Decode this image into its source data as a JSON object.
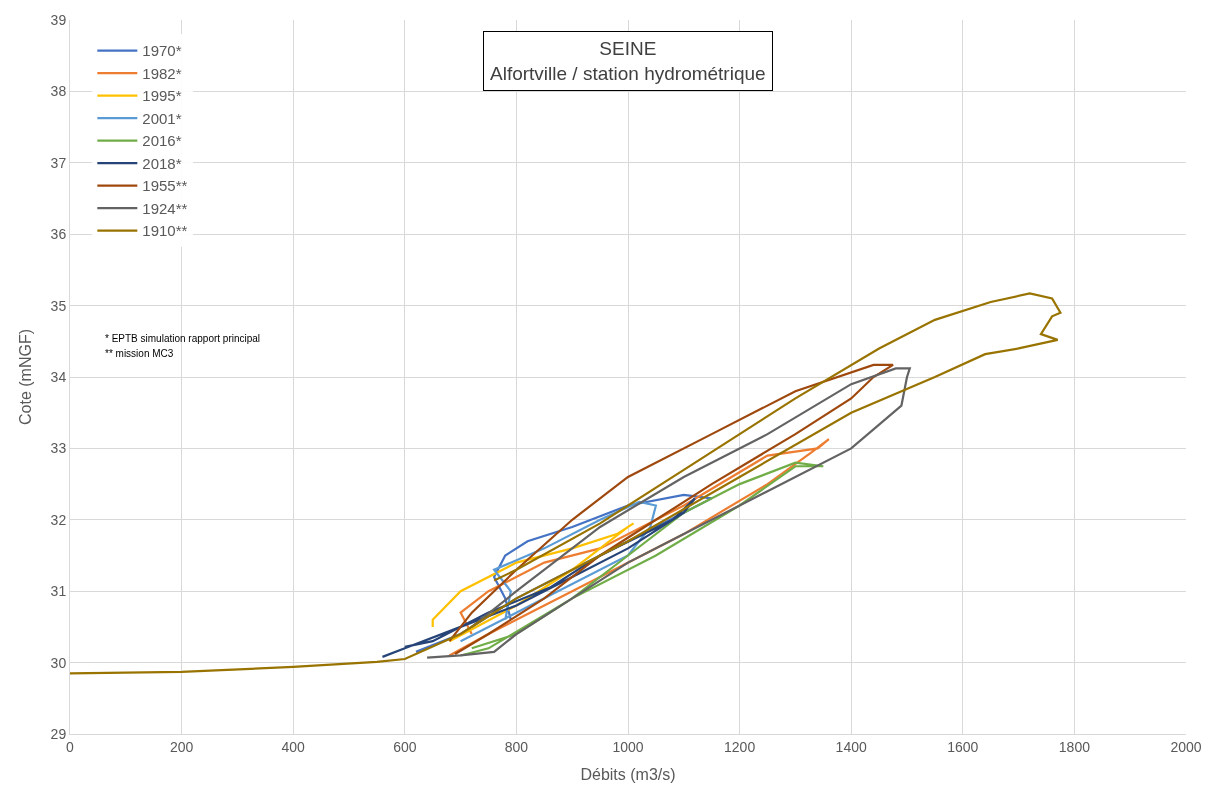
{
  "chart_data": {
    "type": "line",
    "title": "SEINE\nAlfortville / station hydrométrique",
    "xlabel": "Débits (m3/s)",
    "ylabel": "Cote (mNGF)",
    "xlim": [
      0,
      2000
    ],
    "xticks": [
      0,
      200,
      400,
      600,
      800,
      1000,
      1200,
      1400,
      1600,
      1800,
      2000
    ],
    "ylim": [
      29,
      39
    ],
    "yticks": [
      29,
      30,
      31,
      32,
      33,
      34,
      35,
      36,
      37,
      38,
      39
    ],
    "grid": true,
    "legend": "top left",
    "marker": "none",
    "line_style": "solid",
    "annotations": [
      "* EPTB simulation rapport principal",
      "** mission MC3"
    ],
    "series": [
      {
        "name": "1970*",
        "color": "#4472c4",
        "x": [
          620,
          700,
          800,
          900,
          1000,
          1100,
          1150,
          1100,
          1000,
          900,
          820,
          780,
          760,
          780,
          790
        ],
        "values": [
          30.15,
          30.4,
          30.9,
          31.3,
          31.7,
          32.1,
          32.3,
          32.35,
          32.2,
          31.9,
          31.7,
          31.5,
          31.2,
          30.9,
          30.6
        ]
      },
      {
        "name": "1982*",
        "color": "#ed7d31",
        "x": [
          680,
          750,
          900,
          1100,
          1250,
          1330,
          1360,
          1340,
          1250,
          1100,
          950,
          850,
          750,
          700,
          720
        ],
        "values": [
          30.1,
          30.4,
          31.0,
          31.8,
          32.5,
          32.95,
          33.13,
          33.0,
          32.9,
          32.2,
          31.6,
          31.4,
          31.0,
          30.7,
          30.4
        ]
      },
      {
        "name": "1995*",
        "color": "#ffc000",
        "x": [
          680,
          800,
          900,
          1000,
          1010,
          980,
          900,
          800,
          700,
          650,
          650
        ],
        "values": [
          30.3,
          30.8,
          31.3,
          31.9,
          31.95,
          31.8,
          31.6,
          31.4,
          31.0,
          30.6,
          30.5
        ]
      },
      {
        "name": "2001*",
        "color": "#5b9bd5",
        "x": [
          700,
          850,
          1000,
          1040,
          1050,
          1020,
          950,
          850,
          760,
          790,
          780
        ],
        "values": [
          30.3,
          30.9,
          31.5,
          31.9,
          32.2,
          32.25,
          32.0,
          31.6,
          31.3,
          31.0,
          30.6
        ]
      },
      {
        "name": "2016*",
        "color": "#70ad47",
        "x": [
          700,
          750,
          900,
          1050,
          1200,
          1300,
          1350,
          1300,
          1200,
          1100,
          1000,
          900,
          800,
          720
        ],
        "values": [
          30.1,
          30.2,
          30.9,
          31.5,
          32.2,
          32.75,
          32.75,
          32.8,
          32.5,
          32.1,
          31.5,
          30.9,
          30.4,
          30.2
        ]
      },
      {
        "name": "2018*",
        "color": "#264478",
        "x": [
          560,
          600,
          700,
          800,
          900,
          1000,
          1100,
          1120,
          1080,
          950,
          860,
          750,
          650,
          600
        ],
        "values": [
          30.08,
          30.2,
          30.5,
          30.8,
          31.2,
          31.6,
          32.1,
          32.3,
          32.0,
          31.5,
          31.05,
          30.7,
          30.3,
          30.22
        ]
      },
      {
        "name": "1955**",
        "color": "#9e480e",
        "x": [
          690,
          750,
          850,
          950,
          1050,
          1150,
          1300,
          1400,
          1440,
          1475,
          1440,
          1300,
          1150,
          1000,
          900,
          800,
          720,
          680
        ],
        "values": [
          30.12,
          30.4,
          30.9,
          31.5,
          32.0,
          32.5,
          33.2,
          33.7,
          34.0,
          34.17,
          34.17,
          33.8,
          33.2,
          32.6,
          32.0,
          31.3,
          30.7,
          30.3
        ]
      },
      {
        "name": "1924**",
        "color": "#636363",
        "x": [
          640,
          700,
          760,
          800,
          900,
          1000,
          1100,
          1250,
          1400,
          1460,
          1490,
          1500,
          1505,
          1480,
          1400,
          1250,
          1100,
          950,
          800,
          720
        ],
        "values": [
          30.07,
          30.1,
          30.15,
          30.4,
          30.9,
          31.4,
          31.8,
          32.4,
          33.0,
          33.4,
          33.6,
          34.0,
          34.12,
          34.12,
          33.9,
          33.2,
          32.6,
          31.9,
          31.0,
          30.5
        ]
      },
      {
        "name": "1910**",
        "color": "#997300",
        "x": [
          0,
          200,
          400,
          550,
          600,
          700,
          800,
          1000,
          1200,
          1400,
          1550,
          1640,
          1700,
          1770,
          1740,
          1760,
          1775,
          1760,
          1720,
          1650,
          1550,
          1450,
          1300,
          1100,
          950,
          800,
          760
        ],
        "values": [
          29.85,
          29.87,
          29.94,
          30.01,
          30.05,
          30.4,
          30.9,
          31.7,
          32.6,
          33.5,
          34.0,
          34.32,
          34.4,
          34.52,
          34.6,
          34.85,
          34.9,
          35.1,
          35.17,
          35.05,
          34.8,
          34.4,
          33.7,
          32.7,
          31.95,
          31.3,
          31.15
        ]
      }
    ]
  }
}
